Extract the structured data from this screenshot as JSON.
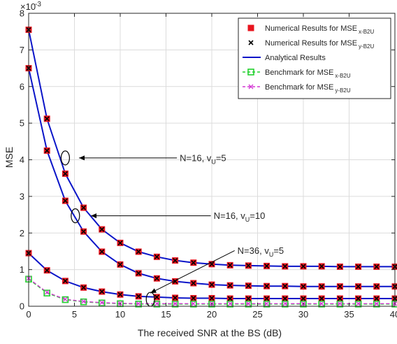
{
  "chart_data": {
    "type": "line",
    "xlabel": "The received SNR at the BS (dB)",
    "ylabel": "MSE",
    "y_exponent": "×10",
    "y_exponent_power": "-3",
    "xlim": [
      0,
      40
    ],
    "ylim": [
      0,
      8
    ],
    "x_ticks": [
      "0",
      "5",
      "10",
      "15",
      "20",
      "25",
      "30",
      "35",
      "40"
    ],
    "y_ticks": [
      "0",
      "1",
      "2",
      "3",
      "4",
      "5",
      "6",
      "7",
      "8"
    ],
    "grid": true,
    "legend_position": "top-right",
    "legend": [
      {
        "label": "Numerical Results for MSE",
        "sub": "x-B2U",
        "marker": "square",
        "color": "#e8141e"
      },
      {
        "label": "Numerical Results for MSE",
        "sub": "y-B2U",
        "marker": "x",
        "color": "#000000"
      },
      {
        "label": "Analytical Results",
        "sub": "",
        "marker": "line",
        "color": "#0a14c8"
      },
      {
        "label": "Benchmark for MSE",
        "sub": "x-B2U",
        "marker": "dashed-square",
        "color": "#22d02e"
      },
      {
        "label": "Benchmark for MSE",
        "sub": "y-B2U",
        "marker": "dashed-x",
        "color": "#d438d4"
      }
    ],
    "x": [
      0,
      2,
      4,
      6,
      8,
      10,
      12,
      14,
      16,
      18,
      20,
      22,
      24,
      26,
      28,
      30,
      32,
      34,
      36,
      38,
      40
    ],
    "series": [
      {
        "role": "analytical",
        "color": "#0a14c8",
        "values": [
          7.55,
          5.12,
          3.62,
          2.69,
          2.1,
          1.73,
          1.49,
          1.35,
          1.25,
          1.19,
          1.15,
          1.12,
          1.11,
          1.1,
          1.09,
          1.09,
          1.09,
          1.08,
          1.08,
          1.08,
          1.08
        ]
      },
      {
        "role": "analytical",
        "color": "#0a14c8",
        "values": [
          6.5,
          4.25,
          2.88,
          2.04,
          1.49,
          1.14,
          0.9,
          0.76,
          0.68,
          0.63,
          0.59,
          0.57,
          0.56,
          0.55,
          0.55,
          0.54,
          0.54,
          0.54,
          0.54,
          0.54,
          0.54
        ]
      },
      {
        "role": "analytical",
        "color": "#0a14c8",
        "values": [
          1.45,
          0.98,
          0.69,
          0.51,
          0.4,
          0.32,
          0.27,
          0.25,
          0.23,
          0.22,
          0.22,
          0.21,
          0.21,
          0.21,
          0.21,
          0.21,
          0.21,
          0.21,
          0.21,
          0.21,
          0.21
        ]
      },
      {
        "role": "benchmark",
        "color": "#22d02e",
        "dashed": true,
        "values": [
          0.74,
          0.36,
          0.18,
          0.12,
          0.09,
          0.07,
          0.06,
          0.06,
          0.06,
          0.06,
          0.06,
          0.06,
          0.06,
          0.06,
          0.06,
          0.06,
          0.06,
          0.06,
          0.06,
          0.06,
          0.06
        ]
      },
      {
        "role": "benchmark",
        "color": "#d438d4",
        "dashed": true,
        "values": [
          0.76,
          0.38,
          0.19,
          0.13,
          0.1,
          0.08,
          0.07,
          0.07,
          0.07,
          0.07,
          0.07,
          0.07,
          0.07,
          0.07,
          0.07,
          0.07,
          0.07,
          0.07,
          0.07,
          0.07,
          0.07
        ]
      }
    ],
    "annotations": [
      {
        "text": "N=16, v",
        "sub": "U",
        "suffix": "=5",
        "ellipse": [
          4.0,
          4.05
        ],
        "target": [
          5.5,
          4.05
        ],
        "text_at": [
          16.5,
          4.05
        ]
      },
      {
        "text": "N=16, v",
        "sub": "U",
        "suffix": "=10",
        "ellipse": [
          5.1,
          2.47
        ],
        "target": [
          6.8,
          2.47
        ],
        "text_at": [
          20.2,
          2.47
        ]
      },
      {
        "text": "N=36, v",
        "sub": "U",
        "suffix": "=5",
        "ellipse": [
          13.3,
          0.19
        ],
        "target": [
          13.3,
          0.36
        ],
        "text_at": [
          22.8,
          1.52
        ]
      }
    ]
  }
}
